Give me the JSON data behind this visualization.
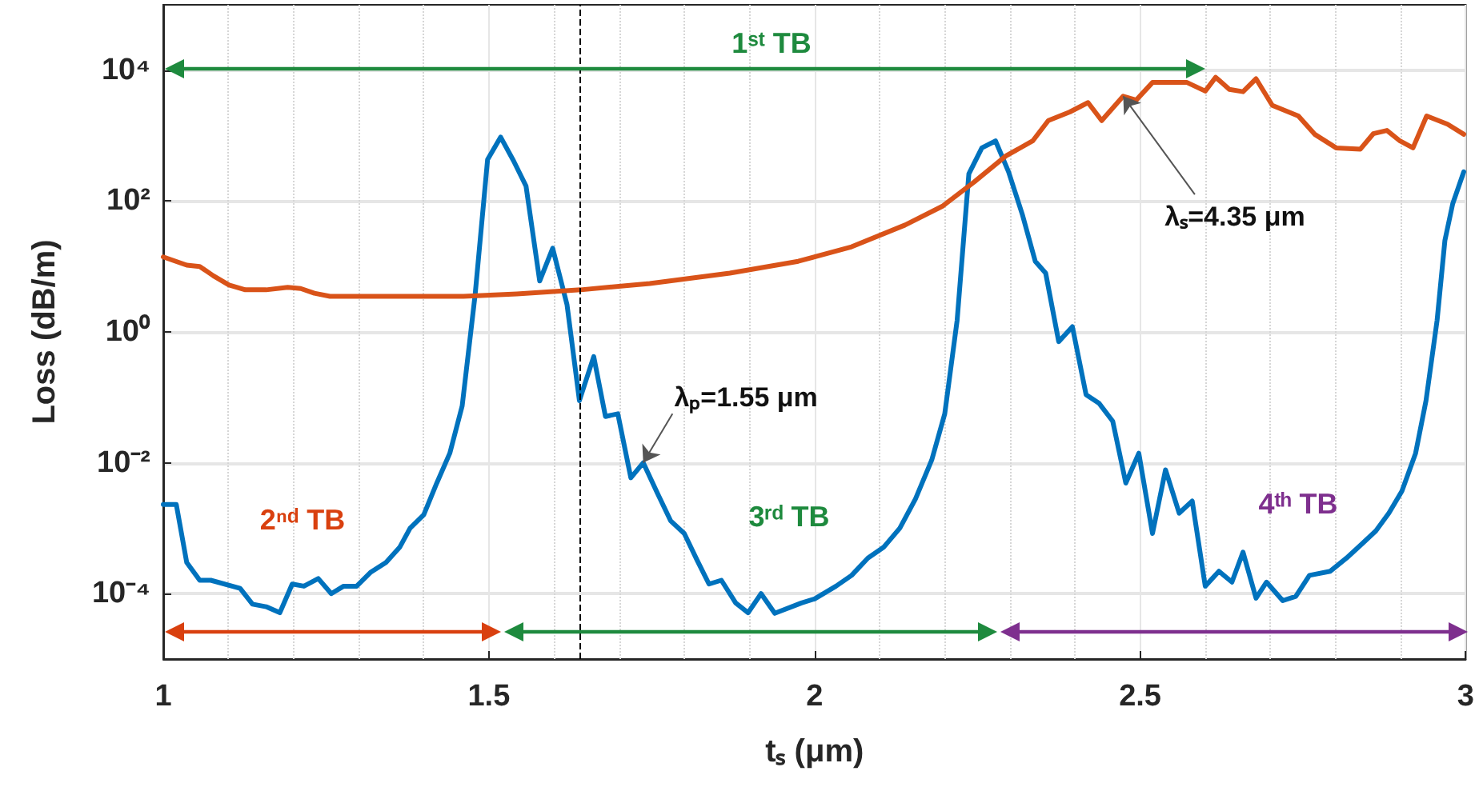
{
  "chart_data": {
    "type": "line",
    "xlabel": "tₛ (μm)",
    "ylabel": "Loss (dB/m)",
    "xlim": [
      1,
      3
    ],
    "xticks": [
      1,
      1.5,
      2,
      2.5,
      3
    ],
    "ylim": [
      1e-05,
      100000
    ],
    "yticks": [
      {
        "value": 0.0001,
        "label": "10⁻⁴"
      },
      {
        "value": 0.01,
        "label": "10⁻²"
      },
      {
        "value": 1,
        "label": "10⁰"
      },
      {
        "value": 100,
        "label": "10²"
      },
      {
        "value": 10000,
        "label": "10⁴"
      }
    ],
    "log": "y",
    "grid": true,
    "marker": "none",
    "line_style": "solid",
    "series": [
      {
        "color": "#0072bd",
        "x": [
          1.0,
          1.02,
          1.036,
          1.056,
          1.073,
          1.118,
          1.137,
          1.158,
          1.179,
          1.198,
          1.216,
          1.238,
          1.258,
          1.277,
          1.297,
          1.318,
          1.342,
          1.363,
          1.379,
          1.4,
          1.42,
          1.44,
          1.459,
          1.479,
          1.498,
          1.518,
          1.538,
          1.557,
          1.578,
          1.598,
          1.62,
          1.639,
          1.661,
          1.679,
          1.698,
          1.718,
          1.737,
          1.759,
          1.779,
          1.8,
          1.82,
          1.838,
          1.857,
          1.879,
          1.898,
          1.918,
          1.939,
          1.98,
          2.0,
          2.033,
          2.057,
          2.082,
          2.106,
          2.131,
          2.155,
          2.18,
          2.2,
          2.219,
          2.237,
          2.257,
          2.278,
          2.298,
          2.319,
          2.339,
          2.355,
          2.375,
          2.396,
          2.417,
          2.437,
          2.458,
          2.478,
          2.498,
          2.519,
          2.539,
          2.56,
          2.58,
          2.6,
          2.621,
          2.641,
          2.658,
          2.678,
          2.694,
          2.719,
          2.739,
          2.76,
          2.792,
          2.817,
          2.841,
          2.862,
          2.882,
          2.902,
          2.923,
          2.939,
          2.956,
          2.968,
          2.98,
          2.997
        ],
        "values": [
          0.0023,
          0.0023,
          0.0003,
          0.00016,
          0.00016,
          0.00012,
          6.9e-05,
          6.3e-05,
          5.1e-05,
          0.00014,
          0.00013,
          0.00017,
          0.0001,
          0.00013,
          0.00013,
          0.00021,
          0.0003,
          0.00051,
          0.001,
          0.0016,
          0.0049,
          0.014,
          0.074,
          3.8,
          430,
          950,
          410,
          170,
          6,
          19,
          2.6,
          0.089,
          0.42,
          0.051,
          0.056,
          0.0059,
          0.01,
          0.0034,
          0.0013,
          0.00083,
          0.00032,
          0.00014,
          0.00016,
          7.2e-05,
          5.1e-05,
          0.0001,
          5e-05,
          7.2e-05,
          8.3e-05,
          0.00013,
          0.00019,
          0.00035,
          0.00051,
          0.001,
          0.0028,
          0.011,
          0.056,
          1.5,
          260,
          650,
          830,
          280,
          63,
          12,
          7.9,
          0.71,
          1.2,
          0.11,
          0.081,
          0.043,
          0.0049,
          0.014,
          0.00083,
          0.0078,
          0.0017,
          0.0026,
          0.00013,
          0.00022,
          0.00015,
          0.00043,
          8.5e-05,
          0.00015,
          7.8e-05,
          9.1e-05,
          0.00019,
          0.00022,
          0.00035,
          0.00058,
          0.00091,
          0.0017,
          0.0037,
          0.014,
          0.089,
          1.5,
          25,
          91,
          280
        ]
      },
      {
        "color": "#d95319",
        "x": [
          1.0,
          1.036,
          1.056,
          1.077,
          1.101,
          1.126,
          1.158,
          1.191,
          1.211,
          1.232,
          1.256,
          1.338,
          1.461,
          1.543,
          1.641,
          1.747,
          1.87,
          1.975,
          2.057,
          2.139,
          2.196,
          2.245,
          2.294,
          2.335,
          2.359,
          2.392,
          2.42,
          2.441,
          2.474,
          2.494,
          2.519,
          2.572,
          2.6,
          2.616,
          2.637,
          2.658,
          2.678,
          2.703,
          2.743,
          2.768,
          2.801,
          2.838,
          2.858,
          2.879,
          2.899,
          2.919,
          2.94,
          2.972,
          2.997
        ],
        "values": [
          14,
          10.5,
          10,
          7.2,
          5.2,
          4.4,
          4.4,
          4.8,
          4.6,
          3.9,
          3.5,
          3.5,
          3.5,
          3.8,
          4.4,
          5.5,
          7.9,
          12,
          20,
          43,
          83,
          195,
          490,
          830,
          1700,
          2300,
          3200,
          1700,
          4000,
          3500,
          6500,
          6500,
          4800,
          7800,
          5100,
          4700,
          7400,
          2900,
          2000,
          1050,
          650,
          620,
          1070,
          1200,
          830,
          650,
          2000,
          1500,
          1050
        ]
      }
    ],
    "ref_lines": [
      {
        "axis": "x",
        "value": 1.64,
        "color": "#000000",
        "line_style": "dashed"
      }
    ],
    "annotations": [
      "1ˢᵗ TB",
      "2ⁿᵈ TB",
      "3ʳᵈ TB",
      "4ᵗʰ TB",
      {
        "text": "λₚ=1.55 μm",
        "x": 1.737,
        "y": 0.01
      },
      {
        "text": "λₛ=4.35 μm",
        "x": 2.474,
        "y": 4000
      }
    ]
  }
}
